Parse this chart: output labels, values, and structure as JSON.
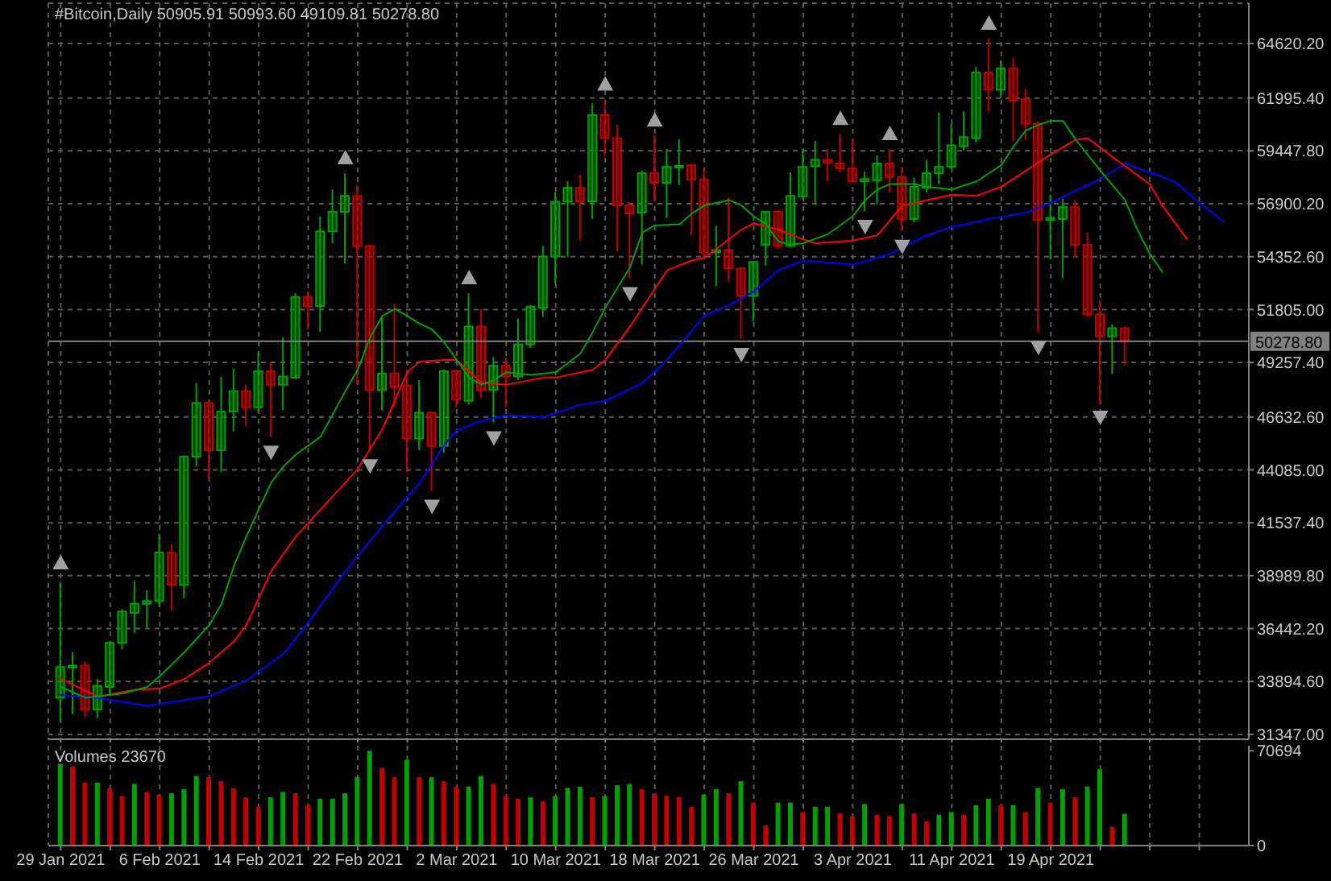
{
  "chart_data": [
    {
      "type": "candlestick",
      "title": "#Bitcoin,Daily 50905.91 50993.60 49109.81 50278.80",
      "x": [
        "2021-01-29",
        "2021-01-30",
        "2021-01-31",
        "2021-02-01",
        "2021-02-02",
        "2021-02-03",
        "2021-02-04",
        "2021-02-05",
        "2021-02-06",
        "2021-02-07",
        "2021-02-08",
        "2021-02-09",
        "2021-02-10",
        "2021-02-11",
        "2021-02-12",
        "2021-02-13",
        "2021-02-14",
        "2021-02-15",
        "2021-02-16",
        "2021-02-17",
        "2021-02-18",
        "2021-02-19",
        "2021-02-20",
        "2021-02-21",
        "2021-02-22",
        "2021-02-23",
        "2021-02-24",
        "2021-02-25",
        "2021-02-26",
        "2021-02-27",
        "2021-02-28",
        "2021-03-01",
        "2021-03-02",
        "2021-03-03",
        "2021-03-04",
        "2021-03-05",
        "2021-03-06",
        "2021-03-07",
        "2021-03-08",
        "2021-03-09",
        "2021-03-10",
        "2021-03-11",
        "2021-03-12",
        "2021-03-13",
        "2021-03-14",
        "2021-03-15",
        "2021-03-16",
        "2021-03-17",
        "2021-03-18",
        "2021-03-19",
        "2021-03-20",
        "2021-03-21",
        "2021-03-22",
        "2021-03-23",
        "2021-03-24",
        "2021-03-25",
        "2021-03-26",
        "2021-03-27",
        "2021-03-28",
        "2021-03-29",
        "2021-03-30",
        "2021-03-31",
        "2021-04-01",
        "2021-04-02",
        "2021-04-03",
        "2021-04-04",
        "2021-04-05",
        "2021-04-06",
        "2021-04-07",
        "2021-04-08",
        "2021-04-09",
        "2021-04-10",
        "2021-04-11",
        "2021-04-12",
        "2021-04-13",
        "2021-04-14",
        "2021-04-15",
        "2021-04-16",
        "2021-04-17",
        "2021-04-18",
        "2021-04-19",
        "2021-04-20",
        "2021-04-21",
        "2021-04-22",
        "2021-04-23",
        "2021-04-24",
        "2021-04-25"
      ],
      "ohlc": [
        [
          33110,
          38680,
          31940,
          34590
        ],
        [
          34560,
          35310,
          32330,
          34660
        ],
        [
          34660,
          34870,
          32180,
          32540
        ],
        [
          32540,
          34020,
          32120,
          33680
        ],
        [
          33630,
          35830,
          33320,
          35750
        ],
        [
          35750,
          37380,
          35440,
          37260
        ],
        [
          37200,
          38730,
          36220,
          37640
        ],
        [
          37640,
          38290,
          36480,
          37770
        ],
        [
          37770,
          41010,
          37510,
          40100
        ],
        [
          40100,
          40490,
          37310,
          38550
        ],
        [
          38550,
          44770,
          37900,
          44720
        ],
        [
          44720,
          48270,
          44250,
          47310
        ],
        [
          47310,
          47490,
          43650,
          45030
        ],
        [
          45030,
          48580,
          43990,
          46890
        ],
        [
          46890,
          48970,
          45930,
          47880
        ],
        [
          47880,
          48190,
          46190,
          47100
        ],
        [
          47100,
          49770,
          46840,
          48840
        ],
        [
          48840,
          49300,
          45680,
          48190
        ],
        [
          48190,
          50470,
          46970,
          48580
        ],
        [
          48530,
          52590,
          48470,
          52410
        ],
        [
          52410,
          52670,
          50860,
          51970
        ],
        [
          51970,
          56300,
          50730,
          55570
        ],
        [
          55570,
          57590,
          55000,
          56510
        ],
        [
          56510,
          58370,
          54020,
          57280
        ],
        [
          57280,
          57780,
          48140,
          54870
        ],
        [
          54870,
          54930,
          45030,
          47930
        ],
        [
          47930,
          51510,
          46970,
          48730
        ],
        [
          48730,
          52080,
          47100,
          48090
        ],
        [
          48140,
          48910,
          43990,
          45600
        ],
        [
          45600,
          48400,
          45030,
          46840
        ],
        [
          46840,
          46890,
          43080,
          45240
        ],
        [
          45240,
          48910,
          44900,
          48840
        ],
        [
          48840,
          48910,
          47100,
          47490
        ],
        [
          47410,
          52590,
          47230,
          50990
        ],
        [
          50990,
          51820,
          47570,
          47930
        ],
        [
          47930,
          49510,
          46380,
          49100
        ],
        [
          49100,
          49480,
          47100,
          48580
        ],
        [
          48580,
          51380,
          48400,
          50130
        ],
        [
          50130,
          52020,
          49950,
          51950
        ],
        [
          51890,
          54870,
          51450,
          54360
        ],
        [
          54360,
          57460,
          53060,
          57000
        ],
        [
          57000,
          57980,
          54360,
          57670
        ],
        [
          57670,
          58290,
          55130,
          57020
        ],
        [
          57020,
          61740,
          56170,
          61170
        ],
        [
          61170,
          61920,
          59230,
          60060
        ],
        [
          60060,
          60700,
          54610,
          56820
        ],
        [
          56820,
          57000,
          53320,
          56430
        ],
        [
          56480,
          58500,
          53970,
          58370
        ],
        [
          58370,
          60190,
          57000,
          57910
        ],
        [
          57910,
          59540,
          56220,
          58680
        ],
        [
          58680,
          60000,
          57800,
          58730
        ],
        [
          58760,
          58810,
          55390,
          58060
        ],
        [
          58060,
          58550,
          54360,
          54560
        ],
        [
          54560,
          55830,
          52930,
          54670
        ],
        [
          54670,
          57210,
          53190,
          53790
        ],
        [
          53790,
          53840,
          50390,
          52460
        ],
        [
          52460,
          54150,
          51250,
          54100
        ],
        [
          54930,
          56560,
          53920,
          56510
        ],
        [
          56510,
          56610,
          54740,
          54870
        ],
        [
          54870,
          58420,
          54820,
          57280
        ],
        [
          57260,
          59540,
          57150,
          58680
        ],
        [
          58710,
          59930,
          56870,
          59020
        ],
        [
          59020,
          59540,
          57980,
          58890
        ],
        [
          58840,
          60260,
          58450,
          58600
        ],
        [
          58600,
          60000,
          57930,
          57980
        ],
        [
          57980,
          58450,
          56560,
          58090
        ],
        [
          58030,
          59230,
          56870,
          58840
        ],
        [
          58840,
          59540,
          57460,
          58190
        ],
        [
          58190,
          58680,
          55600,
          56170
        ],
        [
          56170,
          58160,
          56010,
          57720
        ],
        [
          57670,
          59020,
          57460,
          58370
        ],
        [
          58370,
          61300,
          57850,
          58680
        ],
        [
          58680,
          60760,
          58550,
          59720
        ],
        [
          59670,
          61350,
          59460,
          60110
        ],
        [
          60060,
          63500,
          59850,
          63220
        ],
        [
          63220,
          64850,
          61350,
          62390
        ],
        [
          62390,
          63810,
          62000,
          63420
        ],
        [
          63420,
          63940,
          59930,
          61870
        ],
        [
          61950,
          62440,
          60000,
          60760
        ],
        [
          60760,
          60890,
          50730,
          56120
        ],
        [
          56120,
          57340,
          54230,
          56220
        ],
        [
          56170,
          57150,
          53320,
          56740
        ],
        [
          56740,
          57080,
          54300,
          54930
        ],
        [
          54930,
          55520,
          51430,
          51580
        ],
        [
          51580,
          52230,
          47360,
          50520
        ],
        [
          50520,
          51090,
          48710,
          50910
        ],
        [
          50905.91,
          50993.6,
          49109.81,
          50278.8
        ]
      ],
      "colors": [
        "#00a000",
        "#00a000",
        "#c00000",
        "#00a000",
        "#00a000",
        "#00a000",
        "#00a000",
        "#00a000",
        "#00a000",
        "#c00000",
        "#00a000",
        "#00a000",
        "#c00000",
        "#00a000",
        "#00a000",
        "#c00000",
        "#00a000",
        "#c00000",
        "#00a000",
        "#00a000",
        "#c00000",
        "#00a000",
        "#00a000",
        "#00a000",
        "#c00000",
        "#c00000",
        "#00a000",
        "#c00000",
        "#c00000",
        "#00a000",
        "#c00000",
        "#00a000",
        "#c00000",
        "#00a000",
        "#c00000",
        "#00a000",
        "#c00000",
        "#00a000",
        "#00a000",
        "#00a000",
        "#00a000",
        "#00a000",
        "#c00000",
        "#00a000",
        "#c00000",
        "#c00000",
        "#c00000",
        "#00a000",
        "#c00000",
        "#00a000",
        "#00a000",
        "#c00000",
        "#c00000",
        "#00a000",
        "#c00000",
        "#c00000",
        "#00a000",
        "#00a000",
        "#c00000",
        "#00a000",
        "#00a000",
        "#00a000",
        "#c00000",
        "#c00000",
        "#c00000",
        "#00a000",
        "#00a000",
        "#c00000",
        "#c00000",
        "#00a000",
        "#00a000",
        "#00a000",
        "#00a000",
        "#00a000",
        "#00a000",
        "#c00000",
        "#00a000",
        "#c00000",
        "#c00000",
        "#c00000",
        "#00a000",
        "#00a000",
        "#c00000",
        "#c00000",
        "#c00000",
        "#00a000",
        "#c00000"
      ],
      "series": [
        {
          "type": "line",
          "color": "#0000ff",
          "x": [
            "2021-01-29",
            "2021-02-01",
            "2021-02-05",
            "2021-02-10",
            "2021-02-13",
            "2021-02-16",
            "2021-02-18",
            "2021-02-21",
            "2021-02-24",
            "2021-02-27",
            "2021-03-01",
            "2021-03-02",
            "2021-03-04",
            "2021-03-06",
            "2021-03-09",
            "2021-03-12",
            "2021-03-14",
            "2021-03-17",
            "2021-03-19",
            "2021-03-22",
            "2021-03-24",
            "2021-03-26",
            "2021-03-28",
            "2021-03-30",
            "2021-04-03",
            "2021-04-06",
            "2021-04-09",
            "2021-04-11",
            "2021-04-14",
            "2021-04-17",
            "2021-04-19",
            "2021-04-23",
            "2021-04-25",
            "2021-04-29",
            "2021-05-01",
            "2021-05-03"
          ],
          "values": [
            33240,
            33110,
            32720,
            33190,
            33940,
            35230,
            36740,
            39200,
            41400,
            43470,
            45290,
            45990,
            46450,
            46710,
            46630,
            47230,
            47410,
            48270,
            49380,
            51510,
            52020,
            52670,
            53710,
            54170,
            53970,
            54490,
            55390,
            55780,
            56170,
            56480,
            56950,
            58110,
            58840,
            57980,
            56950,
            56040
          ]
        },
        {
          "type": "line",
          "color": "#ff0000",
          "x": [
            "2021-01-29",
            "2021-02-01",
            "2021-02-04",
            "2021-02-06",
            "2021-02-08",
            "2021-02-10",
            "2021-02-12",
            "2021-02-13",
            "2021-02-15",
            "2021-02-17",
            "2021-02-20",
            "2021-02-22",
            "2021-02-24",
            "2021-02-26",
            "2021-02-27",
            "2021-03-01",
            "2021-03-02",
            "2021-03-04",
            "2021-03-06",
            "2021-03-09",
            "2021-03-10",
            "2021-03-13",
            "2021-03-14",
            "2021-03-16",
            "2021-03-18",
            "2021-03-19",
            "2021-03-21",
            "2021-03-22",
            "2021-03-23",
            "2021-03-25",
            "2021-03-26",
            "2021-03-28",
            "2021-03-30",
            "2021-03-31",
            "2021-04-03",
            "2021-04-05",
            "2021-04-07",
            "2021-04-09",
            "2021-04-11",
            "2021-04-13",
            "2021-04-15",
            "2021-04-17",
            "2021-04-19",
            "2021-04-21",
            "2021-04-22",
            "2021-04-24",
            "2021-04-27",
            "2021-04-28",
            "2021-04-30"
          ],
          "values": [
            34020,
            33160,
            33500,
            33550,
            34020,
            34790,
            35830,
            36610,
            39200,
            40880,
            42830,
            44120,
            46060,
            48790,
            49300,
            49380,
            49380,
            48270,
            48190,
            48530,
            48530,
            48910,
            49380,
            50990,
            52800,
            53710,
            54170,
            54300,
            54740,
            55650,
            55960,
            55650,
            55180,
            55000,
            55130,
            55390,
            56820,
            57080,
            57340,
            57280,
            57720,
            58500,
            59280,
            59980,
            60060,
            59150,
            57850,
            56820,
            55210
          ]
        },
        {
          "type": "line",
          "color": "#00a000",
          "x": [
            "2021-01-29",
            "2021-01-31",
            "2021-02-03",
            "2021-02-05",
            "2021-02-06",
            "2021-02-08",
            "2021-02-10",
            "2021-02-11",
            "2021-02-12",
            "2021-02-13",
            "2021-02-14",
            "2021-02-15",
            "2021-02-16",
            "2021-02-17",
            "2021-02-19",
            "2021-02-21",
            "2021-02-22",
            "2021-02-23",
            "2021-02-24",
            "2021-02-25",
            "2021-02-26",
            "2021-02-27",
            "2021-02-28",
            "2021-03-01",
            "2021-03-02",
            "2021-03-03",
            "2021-03-04",
            "2021-03-05",
            "2021-03-06",
            "2021-03-08",
            "2021-03-10",
            "2021-03-12",
            "2021-03-13",
            "2021-03-14",
            "2021-03-16",
            "2021-03-17",
            "2021-03-18",
            "2021-03-20",
            "2021-03-21",
            "2021-03-22",
            "2021-03-24",
            "2021-03-25",
            "2021-03-26",
            "2021-03-27",
            "2021-03-28",
            "2021-03-29",
            "2021-03-30",
            "2021-04-01",
            "2021-04-03",
            "2021-04-04",
            "2021-04-05",
            "2021-04-06",
            "2021-04-08",
            "2021-04-09",
            "2021-04-11",
            "2021-04-13",
            "2021-04-15",
            "2021-04-16",
            "2021-04-17",
            "2021-04-18",
            "2021-04-19",
            "2021-04-20",
            "2021-04-21",
            "2021-04-23",
            "2021-04-25",
            "2021-04-26",
            "2021-04-27",
            "2021-04-28"
          ],
          "values": [
            33630,
            33110,
            33320,
            33630,
            34150,
            35310,
            36610,
            37640,
            39460,
            40880,
            42180,
            43470,
            44250,
            44820,
            45680,
            47880,
            48910,
            50470,
            51510,
            51840,
            51510,
            51120,
            50860,
            50210,
            49380,
            48530,
            48190,
            48400,
            48790,
            48660,
            48790,
            49690,
            50730,
            51890,
            53840,
            55520,
            55860,
            55910,
            56430,
            56820,
            57080,
            56820,
            56300,
            55910,
            55080,
            54930,
            55000,
            55440,
            56300,
            57080,
            57590,
            57850,
            57850,
            57720,
            57590,
            57980,
            58760,
            59670,
            60440,
            60700,
            60910,
            60890,
            60000,
            58500,
            57080,
            55650,
            54490,
            53630
          ]
        },
        {
          "type": "scatter",
          "marker": "triangle",
          "color": "#a0a0a0",
          "x": [
            "2021-01-29",
            "2021-02-21",
            "2021-03-03",
            "2021-03-14",
            "2021-03-18",
            "2021-04-02",
            "2021-04-06",
            "2021-04-14"
          ],
          "values": [
            39600,
            59110,
            53330,
            62660,
            60930,
            61000,
            60280,
            65590
          ]
        },
        {
          "type": "scatter",
          "marker": "triangle",
          "color": "#a0a0a0",
          "x": [
            "2021-02-15",
            "2021-02-23",
            "2021-02-28",
            "2021-03-05",
            "2021-03-16",
            "2021-03-25",
            "2021-04-04",
            "2021-04-07",
            "2021-04-18",
            "2021-04-23"
          ],
          "values": [
            44940,
            44290,
            42340,
            45640,
            52580,
            49650,
            55820,
            54860,
            49990,
            46620
          ]
        }
      ],
      "xlim": [
        "2021-01-28",
        "2021-05-05"
      ],
      "xticks": [
        {
          "value": "2021-01-29",
          "label": null
        },
        {
          "value": "2021-02-02",
          "label": null
        },
        {
          "value": "2021-02-06",
          "label": null
        },
        {
          "value": "2021-02-10",
          "label": null
        },
        {
          "value": "2021-02-14",
          "label": null
        },
        {
          "value": "2021-02-18",
          "label": null
        },
        {
          "value": "2021-02-22",
          "label": null
        },
        {
          "value": "2021-02-26",
          "label": null
        },
        {
          "value": "2021-03-02",
          "label": null
        },
        {
          "value": "2021-03-06",
          "label": null
        },
        {
          "value": "2021-03-10",
          "label": null
        },
        {
          "value": "2021-03-14",
          "label": null
        },
        {
          "value": "2021-03-18",
          "label": null
        },
        {
          "value": "2021-03-22",
          "label": null
        },
        {
          "value": "2021-03-26",
          "label": null
        },
        {
          "value": "2021-03-30",
          "label": null
        },
        {
          "value": "2021-04-03",
          "label": null
        },
        {
          "value": "2021-04-07",
          "label": null
        },
        {
          "value": "2021-04-11",
          "label": null
        },
        {
          "value": "2021-04-15",
          "label": null
        },
        {
          "value": "2021-04-19",
          "label": null
        },
        {
          "value": "2021-04-23",
          "label": null
        },
        {
          "value": "2021-04-27",
          "label": null
        },
        {
          "value": "2021-05-01",
          "label": null
        }
      ],
      "ylim": [
        31110,
        66560
      ],
      "yticks": [
        {
          "value": 31347,
          "label": "31347.00"
        },
        {
          "value": 33894.6,
          "label": "33894.60"
        },
        {
          "value": 36442.2,
          "label": "36442.20"
        },
        {
          "value": 38989.8,
          "label": "38989.80"
        },
        {
          "value": 41537.4,
          "label": "41537.40"
        },
        {
          "value": 44085,
          "label": "44085.00"
        },
        {
          "value": 46632.6,
          "label": "46632.60"
        },
        {
          "value": 49257.4,
          "label": "49257.40"
        },
        {
          "value": 51805,
          "label": "51805.00"
        },
        {
          "value": 54352.6,
          "label": "54352.60"
        },
        {
          "value": 56900.2,
          "label": "56900.20"
        },
        {
          "value": 59447.8,
          "label": "59447.80"
        },
        {
          "value": 61995.4,
          "label": "61995.40"
        },
        {
          "value": 64620.2,
          "label": "64620.20"
        }
      ],
      "ref_lines": [
        {
          "axis": "y",
          "value": 50278.8,
          "label": "50278.80",
          "color": "#808080"
        }
      ],
      "grid": true,
      "tick_labels": "y"
    },
    {
      "type": "bar",
      "title": "Volumes 23670",
      "x": [
        "2021-01-29",
        "2021-01-30",
        "2021-01-31",
        "2021-02-01",
        "2021-02-02",
        "2021-02-03",
        "2021-02-04",
        "2021-02-05",
        "2021-02-06",
        "2021-02-07",
        "2021-02-08",
        "2021-02-09",
        "2021-02-10",
        "2021-02-11",
        "2021-02-12",
        "2021-02-13",
        "2021-02-14",
        "2021-02-15",
        "2021-02-16",
        "2021-02-17",
        "2021-02-18",
        "2021-02-19",
        "2021-02-20",
        "2021-02-21",
        "2021-02-22",
        "2021-02-23",
        "2021-02-24",
        "2021-02-25",
        "2021-02-26",
        "2021-02-27",
        "2021-02-28",
        "2021-03-01",
        "2021-03-02",
        "2021-03-03",
        "2021-03-04",
        "2021-03-05",
        "2021-03-06",
        "2021-03-07",
        "2021-03-08",
        "2021-03-09",
        "2021-03-10",
        "2021-03-11",
        "2021-03-12",
        "2021-03-13",
        "2021-03-14",
        "2021-03-15",
        "2021-03-16",
        "2021-03-17",
        "2021-03-18",
        "2021-03-19",
        "2021-03-20",
        "2021-03-21",
        "2021-03-22",
        "2021-03-23",
        "2021-03-24",
        "2021-03-25",
        "2021-03-26",
        "2021-03-27",
        "2021-03-28",
        "2021-03-29",
        "2021-03-30",
        "2021-03-31",
        "2021-04-01",
        "2021-04-02",
        "2021-04-03",
        "2021-04-04",
        "2021-04-05",
        "2021-04-06",
        "2021-04-07",
        "2021-04-08",
        "2021-04-09",
        "2021-04-10",
        "2021-04-11",
        "2021-04-12",
        "2021-04-13",
        "2021-04-14",
        "2021-04-15",
        "2021-04-16",
        "2021-04-17",
        "2021-04-18",
        "2021-04-19",
        "2021-04-20",
        "2021-04-21",
        "2021-04-22",
        "2021-04-23",
        "2021-04-24",
        "2021-04-25"
      ],
      "values": [
        61000,
        59000,
        47000,
        47000,
        43000,
        37000,
        46000,
        40000,
        38000,
        39000,
        42000,
        52000,
        51000,
        48000,
        43000,
        36000,
        29000,
        36000,
        40000,
        39000,
        30000,
        35000,
        35000,
        39000,
        51000,
        70694,
        58000,
        51000,
        64000,
        51000,
        51000,
        48000,
        44000,
        44000,
        52000,
        46000,
        37000,
        35000,
        36000,
        33000,
        37000,
        43000,
        44000,
        36000,
        37000,
        45000,
        46000,
        42000,
        39000,
        37000,
        36000,
        29000,
        38000,
        42000,
        39000,
        48000,
        32000,
        15000,
        32000,
        32000,
        25000,
        29000,
        29000,
        24000,
        22000,
        31000,
        23000,
        22000,
        31000,
        24000,
        18000,
        23000,
        25000,
        23000,
        30000,
        35000,
        30000,
        30000,
        25000,
        43000,
        32000,
        42000,
        36000,
        44000,
        57000,
        14000,
        23670
      ],
      "colors": [
        "#00a000",
        "#c00000",
        "#c00000",
        "#00a000",
        "#c00000",
        "#c00000",
        "#00a000",
        "#c00000",
        "#c00000",
        "#00a000",
        "#00a000",
        "#00a000",
        "#c00000",
        "#c00000",
        "#c00000",
        "#c00000",
        "#c00000",
        "#00a000",
        "#00a000",
        "#c00000",
        "#c00000",
        "#00a000",
        "#00a000",
        "#00a000",
        "#00a000",
        "#00a000",
        "#c00000",
        "#c00000",
        "#00a000",
        "#c00000",
        "#00a000",
        "#c00000",
        "#c00000",
        "#00a000",
        "#00a000",
        "#c00000",
        "#c00000",
        "#c00000",
        "#00a000",
        "#c00000",
        "#00a000",
        "#00a000",
        "#00a000",
        "#c00000",
        "#00a000",
        "#00a000",
        "#00a000",
        "#c00000",
        "#c00000",
        "#c00000",
        "#c00000",
        "#c00000",
        "#00a000",
        "#00a000",
        "#c00000",
        "#00a000",
        "#c00000",
        "#c00000",
        "#00a000",
        "#00a000",
        "#c00000",
        "#00a000",
        "#00a000",
        "#c00000",
        "#c00000",
        "#00a000",
        "#c00000",
        "#c00000",
        "#00a000",
        "#c00000",
        "#c00000",
        "#00a000",
        "#00a000",
        "#c00000",
        "#00a000",
        "#00a000",
        "#c00000",
        "#00a000",
        "#c00000",
        "#00a000",
        "#c00000",
        "#00a000",
        "#c00000",
        "#00a000",
        "#00a000",
        "#c00000",
        "#00a000"
      ],
      "xlim": [
        "2021-01-28",
        "2021-05-05"
      ],
      "xticks": [
        {
          "value": "2021-01-29",
          "label": "29 Jan 2021"
        },
        {
          "value": "2021-02-02",
          "label": null
        },
        {
          "value": "2021-02-06",
          "label": "6 Feb 2021"
        },
        {
          "value": "2021-02-10",
          "label": null
        },
        {
          "value": "2021-02-14",
          "label": "14 Feb 2021"
        },
        {
          "value": "2021-02-18",
          "label": null
        },
        {
          "value": "2021-02-22",
          "label": "22 Feb 2021"
        },
        {
          "value": "2021-02-26",
          "label": null
        },
        {
          "value": "2021-03-02",
          "label": "2 Mar 2021"
        },
        {
          "value": "2021-03-06",
          "label": null
        },
        {
          "value": "2021-03-10",
          "label": "10 Mar 2021"
        },
        {
          "value": "2021-03-14",
          "label": null
        },
        {
          "value": "2021-03-18",
          "label": "18 Mar 2021"
        },
        {
          "value": "2021-03-22",
          "label": null
        },
        {
          "value": "2021-03-26",
          "label": "26 Mar 2021"
        },
        {
          "value": "2021-03-30",
          "label": null
        },
        {
          "value": "2021-04-03",
          "label": "3 Apr 2021"
        },
        {
          "value": "2021-04-07",
          "label": null
        },
        {
          "value": "2021-04-11",
          "label": "11 Apr 2021"
        },
        {
          "value": "2021-04-15",
          "label": null
        },
        {
          "value": "2021-04-19",
          "label": "19 Apr 2021"
        },
        {
          "value": "2021-04-23",
          "label": null
        },
        {
          "value": "2021-04-27",
          "label": null
        },
        {
          "value": "2021-05-01",
          "label": null
        }
      ],
      "ylim": [
        0,
        74500
      ],
      "yticks": [
        0,
        70694
      ],
      "grid": "x"
    }
  ]
}
